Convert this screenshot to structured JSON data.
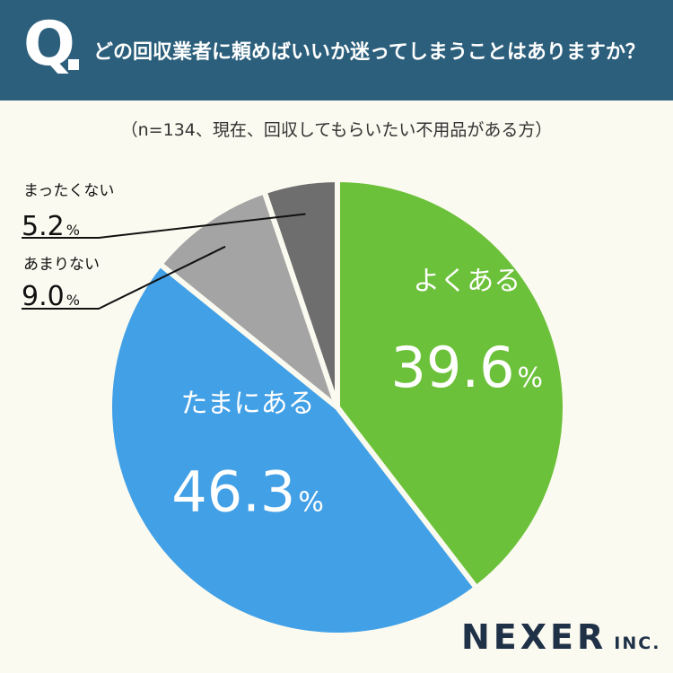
{
  "header": {
    "q_mark": "Q",
    "question": "どの回収業者に頼めばいいか迷ってしまうことはありますか？"
  },
  "subtitle": "（n=134、現在、回収してもらいたい不用品がある方）",
  "logo": {
    "main": "NEXER",
    "suffix": "INC."
  },
  "chart_data": {
    "type": "pie",
    "title": "",
    "start_angle": "12 o'clock",
    "direction": "clockwise",
    "unit": "%",
    "slices": [
      {
        "label": "よくある",
        "value": 39.6,
        "value_text": "39.6",
        "color": "#6cc13a"
      },
      {
        "label": "たまにある",
        "value": 46.3,
        "value_text": "46.3",
        "color": "#42a0e6"
      },
      {
        "label": "あまりない",
        "value": 9.0,
        "value_text": "9.0",
        "color": "#a4a4a4"
      },
      {
        "label": "まったくない",
        "value": 5.2,
        "value_text": "5.2",
        "color": "#6e6e6e"
      }
    ]
  }
}
